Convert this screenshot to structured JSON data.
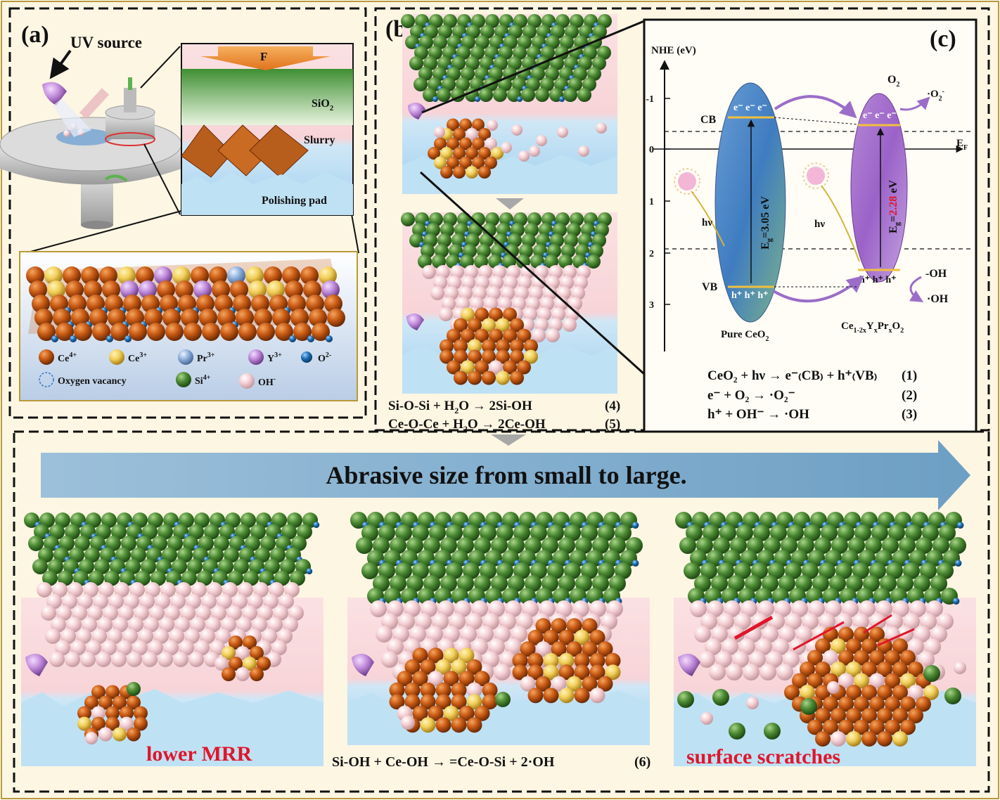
{
  "panel_a": {
    "label": "(a)",
    "uv_source": "UV source",
    "force": "F",
    "sio2": "SiO",
    "sio2_sub": "2",
    "slurry": "Slurry",
    "pad": "Polishing pad",
    "legend": [
      {
        "label": "Ce",
        "sup": "4+",
        "color": "#c85a14"
      },
      {
        "label": "Ce",
        "sup": "3+",
        "color": "#f2cf5a"
      },
      {
        "label": "Pr",
        "sup": "3+",
        "color": "#8fb0dc"
      },
      {
        "label": "Y",
        "sup": "3+",
        "color": "#c08ad9"
      },
      {
        "label": "O",
        "sup": "2-",
        "color": "#1f6fb4"
      },
      {
        "label": "Oxygen vacancy",
        "sup": "",
        "color": "#2f78c8"
      },
      {
        "label": "Si",
        "sup": "4+",
        "color": "#4d8b34"
      },
      {
        "label": "OH",
        "sup": "-",
        "color": "#f5d0d4"
      }
    ]
  },
  "panel_b": {
    "label": "(b)",
    "eq4_left": "Si-O-Si + H",
    "eq4_sub": "2",
    "eq4_right": "O → 2Si-OH",
    "eq4_num": "(4)",
    "eq5_left": "Ce-O-Ce + H",
    "eq5_sub": "2",
    "eq5_right": "O → 2Ce-OH",
    "eq5_num": "(5)"
  },
  "panel_c": {
    "label": "(c)",
    "axis_title": "NHE (eV)",
    "ticks": [
      "-1",
      "0",
      "1",
      "2",
      "3"
    ],
    "cb": "CB",
    "vb": "VB",
    "ef": "E",
    "ef_sub": "F",
    "electrons": "e⁻ e⁻ e⁻",
    "holes": "h⁺ h⁺ h⁺",
    "hv": "hν",
    "eg_pure": "3.05 eV",
    "eg_doped": "2.28",
    "eg_unit": " eV",
    "eg_prefix": "E",
    "eg_sub": "g",
    "pure_label": "Pure CeO",
    "pure_sub": "2",
    "doped_label": "Ce",
    "doped_sub1": "1-2x",
    "doped_y": "Y",
    "doped_sub2": "x",
    "doped_pr": "Pr",
    "doped_sub3": "x",
    "doped_o": "O",
    "doped_sub4": "2",
    "o2": "O",
    "o2_sub": "2",
    "o2_radical": "·O",
    "o2_radical_sub": "2",
    "o2_radical_sup": "-",
    "oh_minus": "-OH",
    "oh_radical": "·OH",
    "eq1": "CeO₂ + hν → e⁻₍CB₎ + h⁺₍VB₎",
    "eq1_num": "(1)",
    "eq2": "e⁻ + O₂ → ·O₂⁻",
    "eq2_num": "(2)",
    "eq3": "h⁺ + OH⁻ → ·OH",
    "eq3_num": "(3)"
  },
  "bottom": {
    "arrow_text": "Abrasive size from small to large.",
    "left_caption": "lower MRR",
    "mid_equation": "Si-OH + Ce-OH → =Ce-O-Si + 2·OH",
    "mid_eq_num": "(6)",
    "right_caption": "surface scratches"
  },
  "colors": {
    "background": "#fdf6e3",
    "border": "#b89a3a",
    "arrow": "#8fb6d3",
    "red_text": "#e0162b",
    "si": "#4d8b34",
    "ce4": "#c85a14",
    "ce3": "#f2cf5a",
    "oh": "#f5d0d4",
    "o": "#1f6fb4"
  }
}
